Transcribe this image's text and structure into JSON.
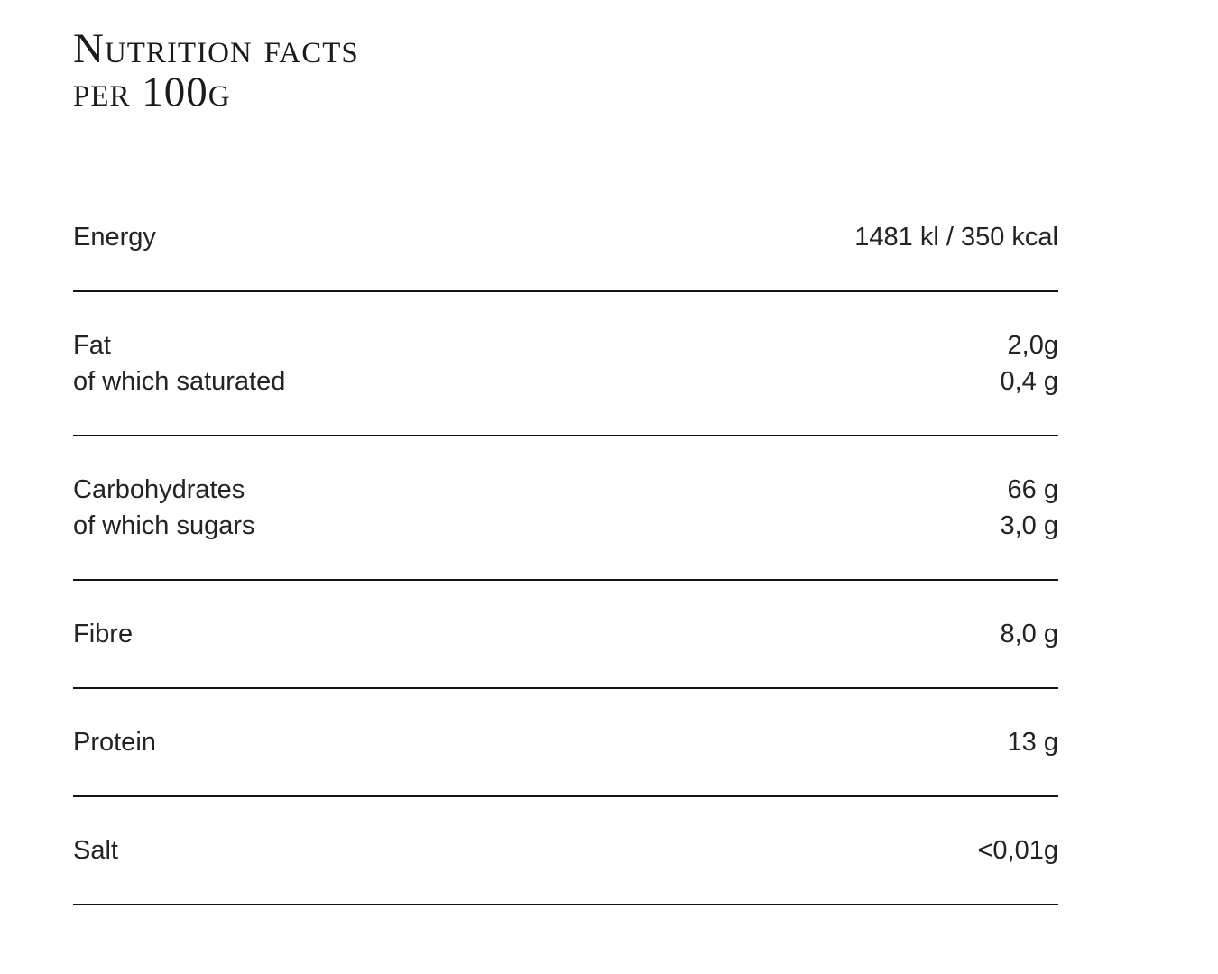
{
  "title": {
    "line1": "Nutrition facts",
    "line2": "per 100g"
  },
  "rows": [
    {
      "lines": [
        {
          "label": "Energy",
          "value": "1481 kl / 350 kcal"
        }
      ]
    },
    {
      "lines": [
        {
          "label": "Fat",
          "value": "2,0g"
        },
        {
          "label": "of which saturated",
          "value": "0,4 g"
        }
      ]
    },
    {
      "lines": [
        {
          "label": "Carbohydrates",
          "value": "66 g"
        },
        {
          "label": "of which sugars",
          "value": "3,0 g"
        }
      ]
    },
    {
      "lines": [
        {
          "label": "Fibre",
          "value": "8,0 g"
        }
      ]
    },
    {
      "lines": [
        {
          "label": "Protein",
          "value": "13 g"
        }
      ]
    },
    {
      "lines": [
        {
          "label": "Salt",
          "value": "<0,01g"
        }
      ]
    }
  ],
  "colors": {
    "background": "#ffffff",
    "text": "#232323",
    "title_text": "#1b1b1b",
    "rule": "#141414"
  }
}
